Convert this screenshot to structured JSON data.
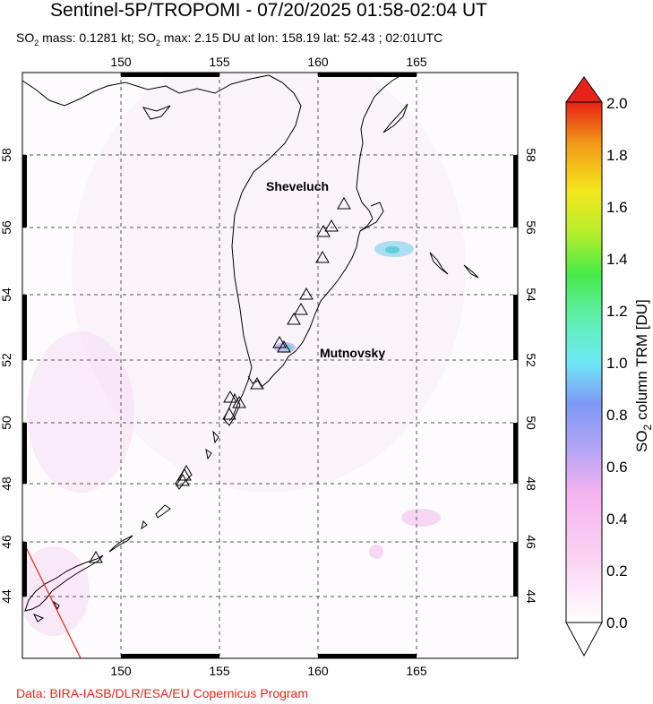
{
  "header": {
    "title": "Sentinel-5P/TROPOMI - 07/20/2025 01:58-02:04 UT",
    "subtitle_parts": {
      "so": "SO",
      "sub": "2",
      "mass_text": " mass: 0.1281 kt; SO",
      "max_text": " max: 2.15 DU at lon: 158.19 lat: 52.43 ; 02:01UTC"
    }
  },
  "map": {
    "lon_ticks": [
      "150",
      "155",
      "160",
      "165"
    ],
    "lat_ticks": [
      "44",
      "46",
      "48",
      "50",
      "52",
      "54",
      "56",
      "58"
    ],
    "volcano_labels": [
      "Sheveluch",
      "Mutnovsky"
    ],
    "colors": {
      "coast": "#000000",
      "grid": "#555555",
      "triangle": "#000000",
      "swath_edge": "#e8231c"
    }
  },
  "colorbar": {
    "ticks": [
      "0.0",
      "0.2",
      "0.4",
      "0.6",
      "0.8",
      "1.0",
      "1.2",
      "1.4",
      "1.6",
      "1.8",
      "2.0"
    ],
    "title_parts": {
      "so": "SO",
      "sub": "2",
      "rest": " column TRM [DU]"
    }
  },
  "footer": {
    "credit": "Data: BIRA-IASB/DLR/ESA/EU Copernicus Program"
  }
}
